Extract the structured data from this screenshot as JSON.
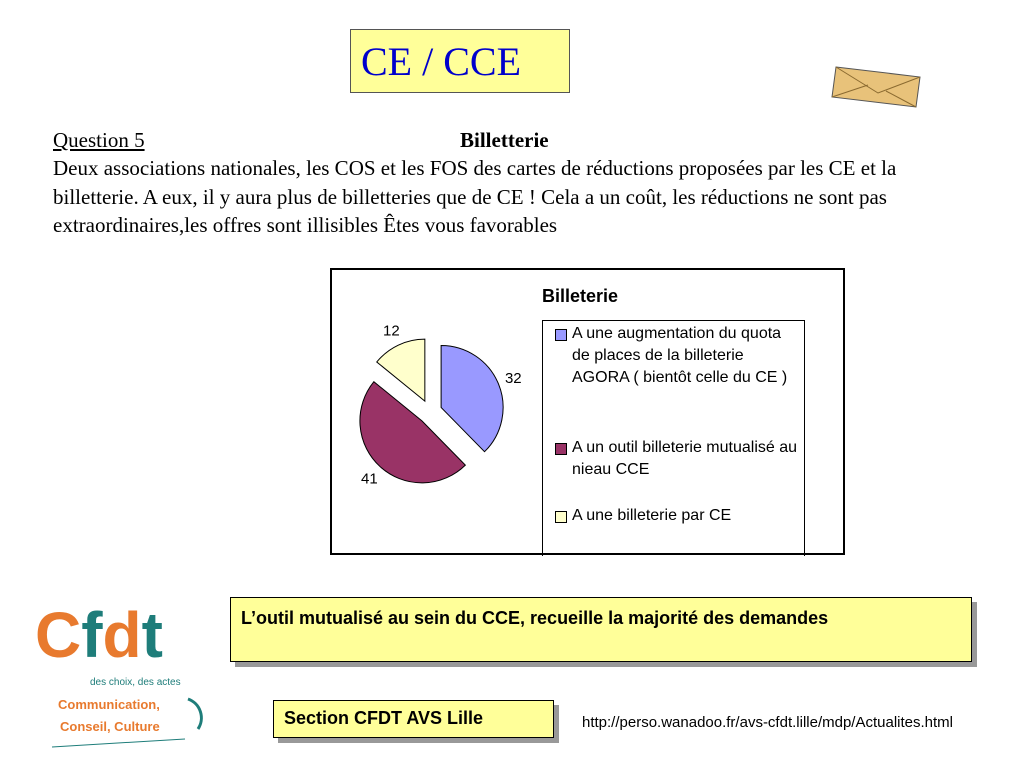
{
  "slide": {
    "title": "CE / CCE",
    "question_label": "Question 5 ",
    "question_title": "Billetterie",
    "body": "Deux associations nationales, les COS et les FOS des cartes de réductions proposées par les CE et la billetterie. A eux, il y aura plus de billetteries que de CE ! Cela a un coût, les réductions ne sont pas extraordinaires,les offres sont illisibles Êtes vous favorables",
    "conclusion": "L’outil mutualisé au sein du CCE, recueille  la majorité des demandes",
    "section": "Section CFDT AVS Lille",
    "url": "http://perso.wanadoo.fr/avs-cfdt.lille/mdp/Actualites.html",
    "logo_text": [
      "cfdt",
      "des choix, des actes",
      "Communication,",
      "Conseil, Culture"
    ],
    "icons": [
      "envelope-icon"
    ]
  },
  "chart_data": {
    "type": "pie",
    "title": "Billeterie",
    "legend_placement": "right",
    "categories": [
      "A une augmentation du quota de places de la billeterie AGORA ( bientôt celle du CE )",
      "A un outil billeterie mutualisé au nieau CCE",
      "A une billeterie par CE"
    ],
    "values": [
      32,
      41,
      12
    ],
    "colors": [
      "#9999ff",
      "#993366",
      "#ffffcc"
    ],
    "exploded": true
  }
}
